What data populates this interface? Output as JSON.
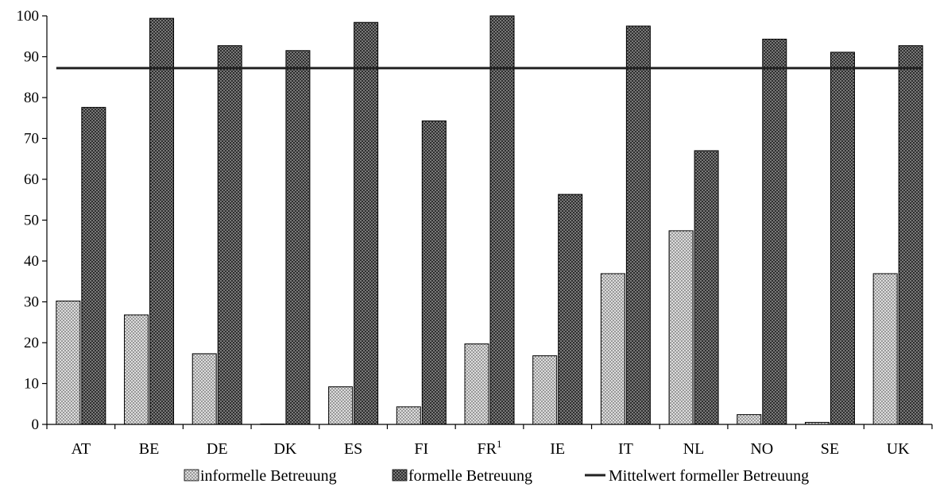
{
  "chart_data": {
    "type": "bar",
    "title": "",
    "xlabel": "",
    "ylabel": "",
    "categories": [
      "AT",
      "BE",
      "DE",
      "DK",
      "ES",
      "FI",
      "FR",
      "IE",
      "IT",
      "NL",
      "NO",
      "SE",
      "UK"
    ],
    "category_superscripts": {
      "FR": "1"
    },
    "series": [
      {
        "name": "informelle Betreuung",
        "values": [
          30.2,
          26.8,
          17.3,
          0.1,
          9.2,
          4.3,
          19.7,
          16.8,
          36.9,
          47.4,
          2.4,
          0.5,
          36.9
        ],
        "color": "#d0d0d0",
        "pattern": "light-crosshatch"
      },
      {
        "name": "formelle Betreuung",
        "values": [
          77.6,
          99.4,
          92.7,
          91.5,
          98.4,
          74.3,
          100,
          56.3,
          97.5,
          67.0,
          94.3,
          91.1,
          92.7
        ],
        "color": "#3a3a3a",
        "pattern": "dark-crosshatch"
      }
    ],
    "reference_line": {
      "name": "Mittelwert formeller Betreuung",
      "value": 87.2,
      "color": "#222222"
    },
    "ylim": [
      0,
      100
    ],
    "yticks": [
      0,
      10,
      20,
      30,
      40,
      50,
      60,
      70,
      80,
      90,
      100
    ],
    "grid": false,
    "legend_position": "bottom"
  }
}
